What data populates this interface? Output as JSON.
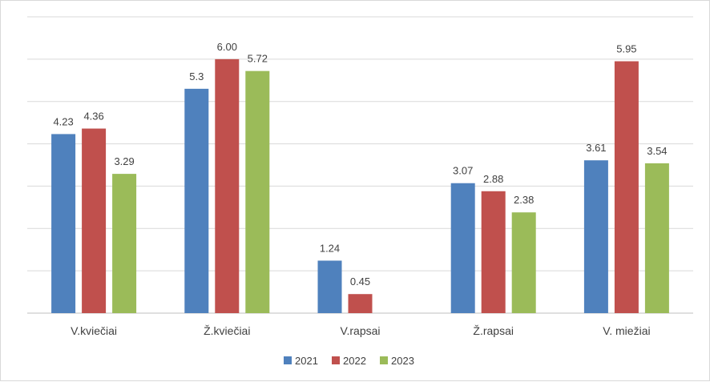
{
  "chart_data": {
    "type": "bar",
    "categories": [
      "V.kviečiai",
      "Ž.kviečiai",
      "V.rapsai",
      "Ž.rapsai",
      "V. miežiai"
    ],
    "series": [
      {
        "name": "2021",
        "color": "#4f81bd",
        "values": [
          4.23,
          5.3,
          1.24,
          3.07,
          3.61
        ],
        "labels": [
          "4.23",
          "5.3",
          "1.24",
          "3.07",
          "3.61"
        ]
      },
      {
        "name": "2022",
        "color": "#c0504d",
        "values": [
          4.36,
          6.0,
          0.45,
          2.88,
          5.95
        ],
        "labels": [
          "4.36",
          "6.00",
          "0.45",
          "2.88",
          "5.95"
        ]
      },
      {
        "name": "2023",
        "color": "#9bbb59",
        "values": [
          3.29,
          5.72,
          null,
          2.38,
          3.54
        ],
        "labels": [
          "3.29",
          "5.72",
          "",
          "2.38",
          "3.54"
        ]
      }
    ],
    "ylim": [
      0,
      7
    ],
    "grid": true,
    "legend": "bottom-center",
    "title": "",
    "xlabel": "",
    "ylabel": ""
  }
}
